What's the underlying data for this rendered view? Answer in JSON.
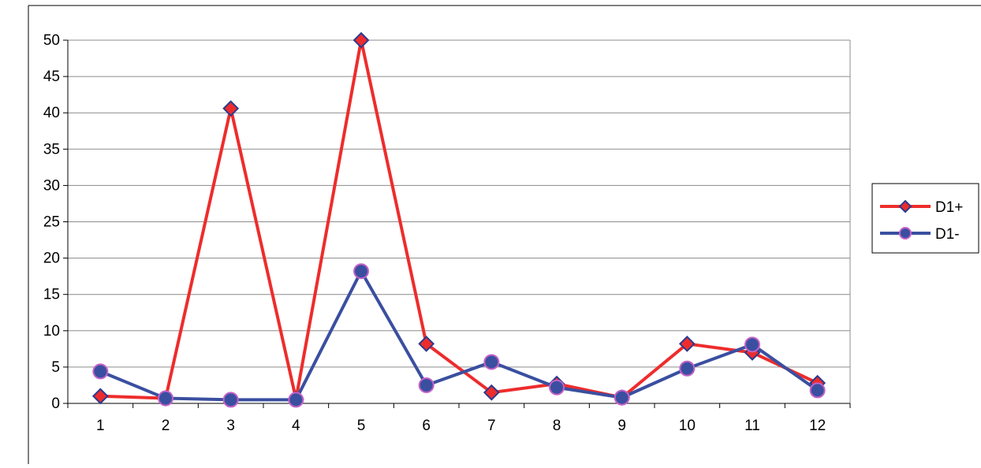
{
  "chart_data": {
    "type": "line",
    "title": "",
    "xlabel": "",
    "ylabel": "",
    "categories": [
      "1",
      "2",
      "3",
      "4",
      "5",
      "6",
      "7",
      "8",
      "9",
      "10",
      "11",
      "12"
    ],
    "ylim": [
      0,
      50
    ],
    "yticks": [
      0,
      5,
      10,
      15,
      20,
      25,
      30,
      35,
      40,
      45,
      50
    ],
    "grid": true,
    "legend_position": "right",
    "series": [
      {
        "name": "D1+",
        "marker": "diamond",
        "color": "#ee2c2c",
        "marker_fill": "#ee2c2c",
        "marker_edge": "#2b3a8f",
        "values": [
          1.0,
          0.7,
          40.6,
          0.6,
          50.0,
          8.2,
          1.5,
          2.7,
          0.8,
          8.2,
          7.0,
          2.8
        ]
      },
      {
        "name": "D1-",
        "marker": "circle",
        "color": "#3a4fa0",
        "marker_fill": "#3a4fa0",
        "marker_edge": "#c462c8",
        "values": [
          4.4,
          0.7,
          0.5,
          0.5,
          18.2,
          2.5,
          5.7,
          2.2,
          0.8,
          4.8,
          8.1,
          1.8
        ]
      }
    ]
  }
}
